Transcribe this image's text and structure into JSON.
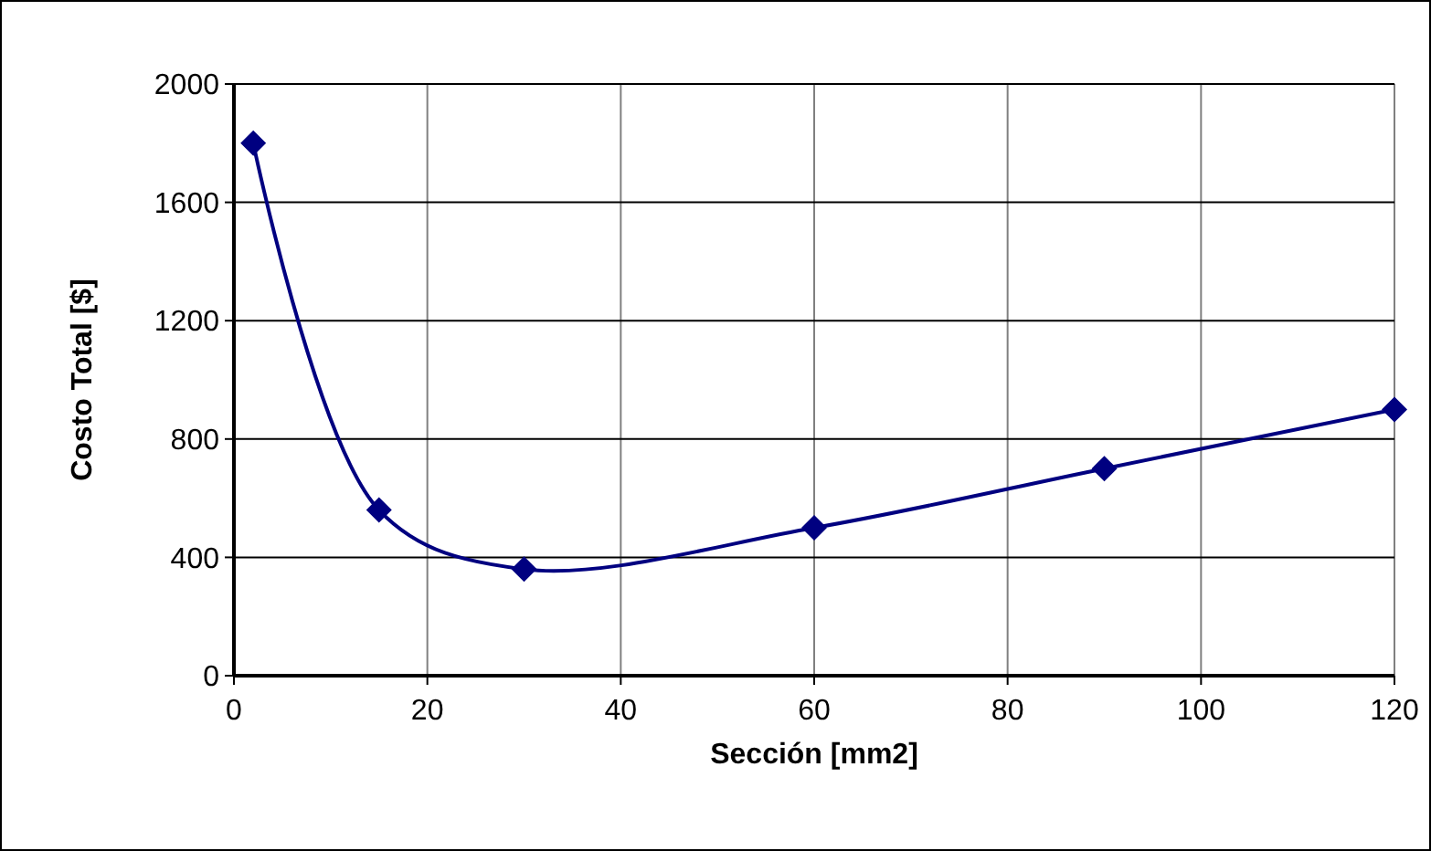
{
  "chart_data": {
    "type": "line",
    "xlabel": "Sección [mm2]",
    "ylabel": "Costo Total [$]",
    "x": [
      2,
      15,
      30,
      60,
      90,
      120
    ],
    "series": [
      {
        "color": "#000080",
        "values": [
          1800,
          560,
          360,
          500,
          700,
          900
        ]
      }
    ],
    "xlim": [
      0,
      120
    ],
    "xticks": [
      0,
      20,
      40,
      60,
      80,
      100,
      120
    ],
    "ylim": [
      0,
      2000
    ],
    "yticks": [
      0,
      400,
      800,
      1200,
      1600,
      2000
    ],
    "grid": true,
    "marker": "diamond",
    "line_style": "solid"
  }
}
